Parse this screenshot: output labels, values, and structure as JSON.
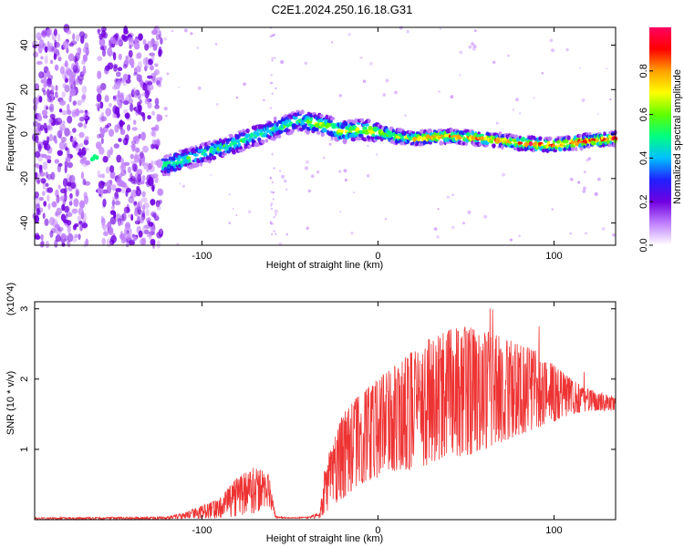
{
  "title": "C2E1.2024.250.16.18.G31",
  "chart_data": [
    {
      "type": "heatmap",
      "xlabel": "Height of straight line (km)",
      "ylabel": "Frequency (Hz)",
      "xlim": [
        -195,
        135
      ],
      "ylim": [
        -50,
        48
      ],
      "xticks": [
        "-100",
        "0",
        "100"
      ],
      "yticks": [
        "40",
        "20",
        "0",
        "-20",
        "-40"
      ],
      "colorbar": {
        "label": "Normalized spectral amplitude",
        "range": [
          0,
          1
        ],
        "ticks": [
          "0.0",
          "0.2",
          "0.4",
          "0.6",
          "0.8"
        ],
        "colors": [
          "#ffffff",
          "#c080ff",
          "#7000e0",
          "#2020ff",
          "#00c0ff",
          "#00ff80",
          "#60ff00",
          "#ffff00",
          "#ffa000",
          "#ff0000",
          "#ff0060"
        ]
      },
      "ridge": {
        "x": [
          -120,
          -100,
          -80,
          -60,
          -45,
          -30,
          -20,
          -10,
          0,
          10,
          20,
          40,
          60,
          80,
          100,
          120,
          135
        ],
        "y": [
          -14,
          -9,
          -4,
          2,
          6,
          4,
          1,
          2,
          1,
          -1,
          -2,
          -1,
          -2,
          -4,
          -5,
          -3,
          -2
        ]
      }
    },
    {
      "type": "line",
      "xlabel": "Height of straight line (km)",
      "ylabel": "SNR (10 * v/v)",
      "scale_label": "(x10^4)",
      "xlim": [
        -195,
        135
      ],
      "ylim": [
        0,
        3.1
      ],
      "xticks": [
        "-100",
        "0",
        "100"
      ],
      "yticks": [
        "3",
        "2",
        "1"
      ],
      "color": "#ee3333",
      "envelope": {
        "x": [
          -195,
          -120,
          -110,
          -90,
          -80,
          -70,
          -62,
          -58,
          -50,
          -40,
          -33,
          -30,
          -20,
          -10,
          0,
          10,
          20,
          30,
          40,
          50,
          60,
          70,
          80,
          90,
          100,
          110,
          120,
          135
        ],
        "low": [
          0,
          0,
          0.02,
          0.02,
          0.05,
          0.1,
          0.2,
          0.02,
          0.02,
          0.02,
          0.02,
          0.1,
          0.3,
          0.5,
          0.6,
          0.7,
          0.7,
          0.8,
          0.9,
          0.9,
          1.0,
          1.1,
          1.2,
          1.3,
          1.4,
          1.5,
          1.55,
          1.55
        ],
        "high": [
          0.03,
          0.04,
          0.1,
          0.3,
          0.6,
          0.75,
          0.65,
          0.05,
          0.03,
          0.04,
          0.1,
          0.8,
          1.5,
          1.8,
          2.0,
          2.2,
          2.4,
          2.6,
          2.7,
          2.75,
          2.7,
          2.6,
          2.5,
          2.4,
          2.2,
          2.0,
          1.85,
          1.75
        ]
      }
    }
  ]
}
